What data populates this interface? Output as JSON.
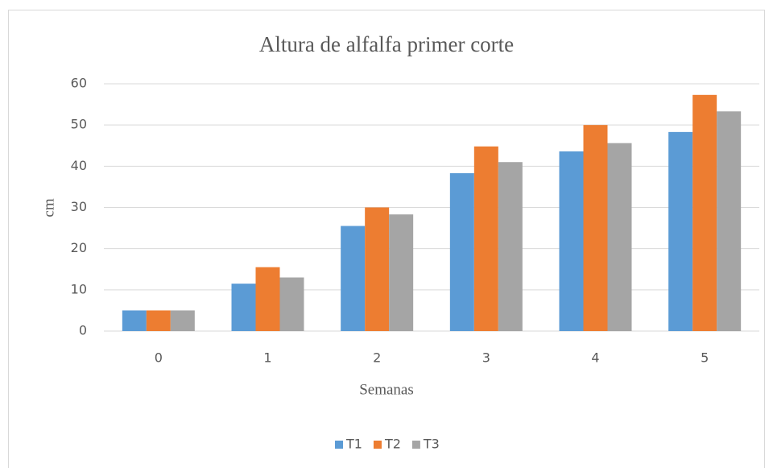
{
  "chart_data": {
    "type": "bar",
    "title": "Altura de alfalfa primer corte",
    "xlabel": "Semanas",
    "ylabel": "cm",
    "categories": [
      "0",
      "1",
      "2",
      "3",
      "4",
      "5"
    ],
    "series": [
      {
        "name": "T1",
        "color": "#5b9bd5",
        "values": [
          5,
          11.5,
          25.5,
          38.3,
          43.6,
          48.3
        ]
      },
      {
        "name": "T2",
        "color": "#ed7d31",
        "values": [
          5,
          15.5,
          30,
          44.8,
          50,
          57.3
        ]
      },
      {
        "name": "T3",
        "color": "#a5a5a5",
        "values": [
          5,
          13,
          28.3,
          41,
          45.6,
          53.3
        ]
      }
    ],
    "ylim": [
      0,
      60
    ],
    "yticks": [
      0,
      10,
      20,
      30,
      40,
      50,
      60
    ],
    "grid": true,
    "legend": "bottom"
  }
}
